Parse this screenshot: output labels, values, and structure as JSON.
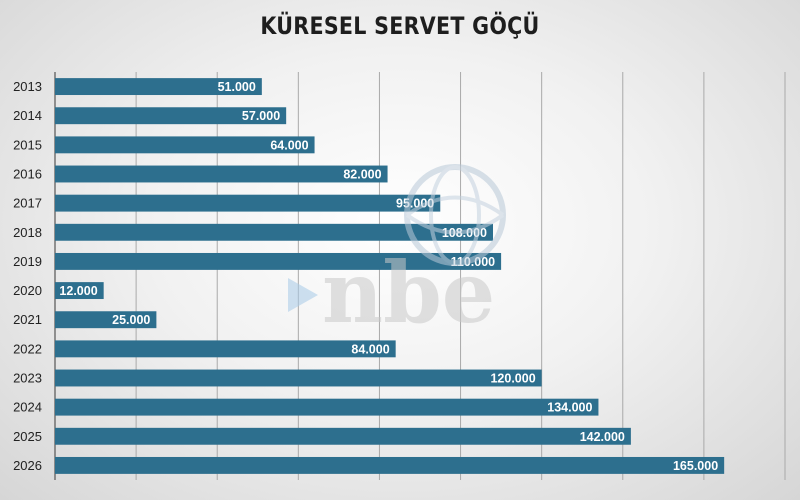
{
  "chart_data": {
    "type": "bar",
    "orientation": "horizontal",
    "title": "KÜRESEL SERVET GÖÇÜ",
    "xlabel": "",
    "ylabel": "",
    "categories": [
      "2013",
      "2014",
      "2015",
      "2016",
      "2017",
      "2018",
      "2019",
      "2020",
      "2021",
      "2022",
      "2023",
      "2024",
      "2025",
      "2026"
    ],
    "values": [
      51000,
      57000,
      64000,
      82000,
      95000,
      108000,
      110000,
      12000,
      25000,
      84000,
      120000,
      134000,
      142000,
      165000
    ],
    "value_labels": [
      "51.000",
      "57.000",
      "64.000",
      "82.000",
      "95.000",
      "108.000",
      "110.000",
      "12.000",
      "25.000",
      "84.000",
      "120.000",
      "134.000",
      "142.000",
      "165.000"
    ],
    "xlim": [
      0,
      180000
    ],
    "grid": true,
    "legend": "none",
    "bar_color": "#2d6f8e"
  },
  "watermark": {
    "logo": "nbe-logo-icon"
  }
}
